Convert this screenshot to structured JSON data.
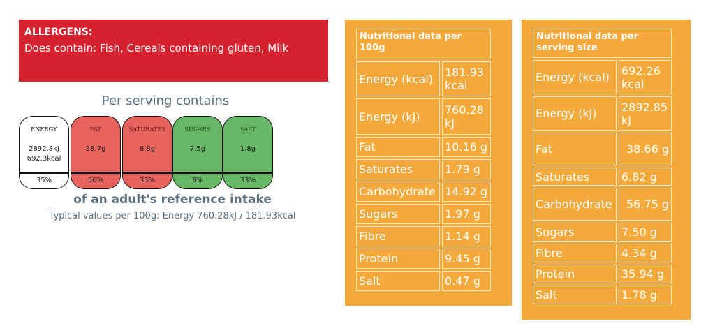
{
  "allergens": {
    "title": "ALLERGENS:",
    "text": "Does contain: Fish, Cereals containing gluten, Milk"
  },
  "traffic_light": {
    "heading": "Per serving contains",
    "items": [
      {
        "label": "ENERGY",
        "value_line1": "2892.8kJ",
        "value_line2": "692.3kcal",
        "percent": "35%",
        "color": "#ffffff"
      },
      {
        "label": "FAT",
        "value_line1": "38.7g",
        "value_line2": "",
        "percent": "56%",
        "color": "#e8625e"
      },
      {
        "label": "SATURATES",
        "value_line1": "6.8g",
        "value_line2": "",
        "percent": "35%",
        "color": "#e8625e"
      },
      {
        "label": "SUGARS",
        "value_line1": "7.5g",
        "value_line2": "",
        "percent": "9%",
        "color": "#67b767"
      },
      {
        "label": "SALT",
        "value_line1": "1.8g",
        "value_line2": "",
        "percent": "33%",
        "color": "#67b767"
      }
    ],
    "reference": "of an adult's reference intake",
    "typical": "Typical values per 100g: Energy 760.28kJ / 181.93kcal"
  },
  "per_100g": {
    "heading": "Nutritional data per 100g",
    "rows": [
      {
        "name": "Energy (kcal)",
        "value": "181.93 kcal"
      },
      {
        "name": "Energy (kJ)",
        "value": "760.28 kJ"
      },
      {
        "name": "Fat",
        "value": "10.16 g"
      },
      {
        "name": "Saturates",
        "value": "1.79 g"
      },
      {
        "name": "Carbohydrate",
        "value": "14.92 g"
      },
      {
        "name": "Sugars",
        "value": "1.97 g"
      },
      {
        "name": "Fibre",
        "value": "1.14 g"
      },
      {
        "name": "Protein",
        "value": "9.45 g"
      },
      {
        "name": "Salt",
        "value": "0.47 g"
      }
    ]
  },
  "per_serving": {
    "heading": "Nutritional data per serving size",
    "rows": [
      {
        "name": "Energy (kcal)",
        "value": "692.26 kcal"
      },
      {
        "name": "Energy (kJ)",
        "value": "2892.85 kJ"
      },
      {
        "name": "Fat",
        "value": "38.66 g"
      },
      {
        "name": "Saturates",
        "value": "6.82 g"
      },
      {
        "name": "Carbohydrate",
        "value": "56.75 g"
      },
      {
        "name": "Sugars",
        "value": "7.50 g"
      },
      {
        "name": "Fibre",
        "value": "4.34 g"
      },
      {
        "name": "Protein",
        "value": "35.94 g"
      },
      {
        "name": "Salt",
        "value": "1.78 g"
      }
    ]
  },
  "colors": {
    "allergen_banner": "#d6212e",
    "panel_orange": "#f5a93a",
    "traffic_red": "#e8625e",
    "traffic_green": "#67b767",
    "heading_text": "#5b6f7e"
  }
}
